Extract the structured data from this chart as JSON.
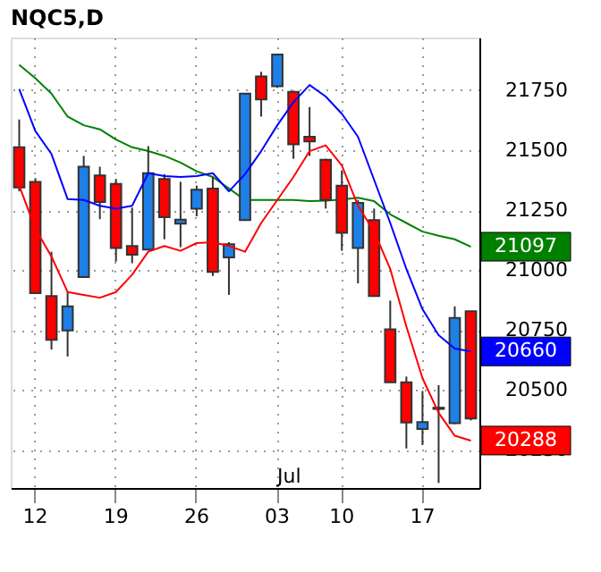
{
  "chart_data": {
    "type": "candlestick",
    "title": "NQC5,D",
    "categories": [
      null,
      "12",
      null,
      null,
      null,
      null,
      "19",
      null,
      null,
      null,
      null,
      "26",
      null,
      null,
      null,
      null,
      "03",
      null,
      null,
      null,
      "10",
      null,
      null,
      null,
      null,
      "17",
      null,
      null,
      null
    ],
    "ohlc": [
      [
        21512,
        21628,
        21328,
        21344
      ],
      [
        21368,
        21383,
        20903,
        20903
      ],
      [
        20891,
        21076,
        20668,
        20708
      ],
      [
        20747,
        20908,
        20639,
        20848
      ],
      [
        20970,
        21476,
        20970,
        21431
      ],
      [
        21395,
        21431,
        21212,
        21284
      ],
      [
        21359,
        21380,
        21035,
        21092
      ],
      [
        21100,
        21260,
        21028,
        21064
      ],
      [
        21085,
        21517,
        21085,
        21404
      ],
      [
        21380,
        21400,
        21128,
        21220
      ],
      [
        21193,
        21368,
        21095,
        21210
      ],
      [
        21256,
        21352,
        21224,
        21335
      ],
      [
        21340,
        21388,
        20975,
        20992
      ],
      [
        21052,
        21116,
        20896,
        21107
      ],
      [
        21208,
        21736,
        21208,
        21736
      ],
      [
        21808,
        21827,
        21640,
        21712
      ],
      [
        21767,
        21899,
        21760,
        21899
      ],
      [
        21743,
        21748,
        21464,
        21524
      ],
      [
        21556,
        21680,
        21476,
        21536
      ],
      [
        21460,
        21464,
        21256,
        21292
      ],
      [
        21352,
        21416,
        21080,
        21155
      ],
      [
        21092,
        21292,
        20944,
        21280
      ],
      [
        21208,
        21256,
        20891,
        20891
      ],
      [
        20752,
        20872,
        20531,
        20531
      ],
      [
        20531,
        20555,
        20255,
        20363
      ],
      [
        20336,
        20495,
        20269,
        20365
      ],
      [
        20425,
        20519,
        20111,
        20420
      ],
      [
        20360,
        20848,
        20356,
        20800
      ],
      [
        20828,
        20828,
        20372,
        20380
      ]
    ],
    "colors": [
      "#ff0000",
      "#ff0000",
      "#ff0000",
      "#1e7fe6",
      "#1e7fe6",
      "#ff0000",
      "#ff0000",
      "#ff0000",
      "#1e7fe6",
      "#ff0000",
      "#1e7fe6",
      "#1e7fe6",
      "#ff0000",
      "#1e7fe6",
      "#1e7fe6",
      "#ff0000",
      "#1e7fe6",
      "#ff0000",
      "#ff0000",
      "#ff0000",
      "#ff0000",
      "#1e7fe6",
      "#ff0000",
      "#ff0000",
      "#ff0000",
      "#1e7fe6",
      "#ff0000",
      "#1e7fe6",
      "#ff0000"
    ],
    "series": [
      {
        "type": "line",
        "color": "#008000",
        "values": [
          21856,
          21800,
          21736,
          21640,
          21604,
          21587,
          21544,
          21512,
          21496,
          21476,
          21448,
          21412,
          21388,
          21340,
          21292,
          21292,
          21292,
          21292,
          21287,
          21289,
          21294,
          21301,
          21287,
          21232,
          21196,
          21160,
          21143,
          21128,
          21097
        ]
      },
      {
        "type": "line",
        "color": "#0000ff",
        "values": [
          21755,
          21580,
          21484,
          21296,
          21292,
          21268,
          21256,
          21268,
          21404,
          21392,
          21388,
          21392,
          21404,
          21328,
          21400,
          21496,
          21604,
          21700,
          21772,
          21724,
          21652,
          21556,
          21376,
          21196,
          21004,
          20836,
          20728,
          20672,
          20660
        ]
      },
      {
        "type": "line",
        "color": "#ff0000",
        "values": [
          21352,
          21172,
          21056,
          20908,
          20896,
          20884,
          20908,
          20980,
          21076,
          21100,
          21080,
          21112,
          21116,
          21100,
          21076,
          21196,
          21292,
          21388,
          21496,
          21520,
          21436,
          21268,
          21160,
          21004,
          20764,
          20548,
          20404,
          20308,
          20288
        ]
      }
    ],
    "annotations": [
      "21097",
      "20660",
      "20288",
      "Jul"
    ],
    "ylim": [
      20090,
      21970
    ],
    "yticks": [
      20250,
      20500,
      20750,
      21000,
      21250,
      21500,
      21750
    ],
    "grid": true,
    "line_style": "solid",
    "marker": "none"
  }
}
